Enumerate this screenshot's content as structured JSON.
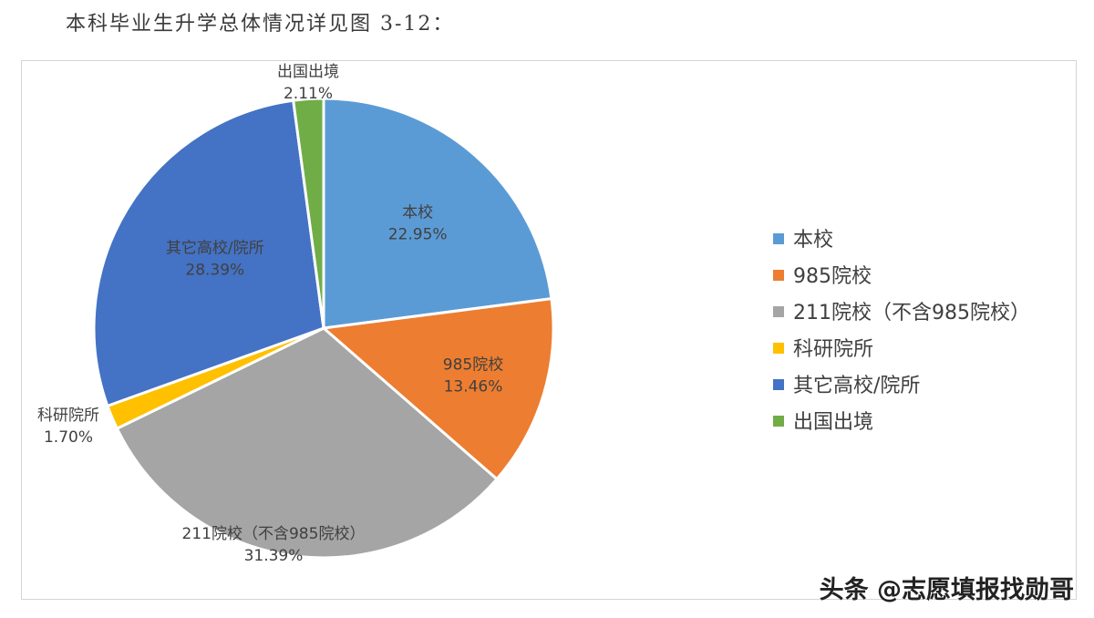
{
  "heading": "本科毕业生升学总体情况详见图 3-12：",
  "chart_data": {
    "type": "pie",
    "title": "",
    "categories": [
      "本校",
      "985院校",
      "211院校（不含985院校）",
      "科研院所",
      "其它高校/院所",
      "出国出境"
    ],
    "values": [
      22.95,
      13.46,
      31.39,
      1.7,
      28.39,
      2.11
    ],
    "data_labels": [
      "22.95%",
      "13.46%",
      "31.39%",
      "1.70%",
      "28.39%",
      "2.11%"
    ],
    "slice_label_names": [
      "本校",
      "985院校",
      "211院校（不含985院校）",
      "科研院所",
      "其它高校/院所",
      "出国出境"
    ],
    "colors": [
      "#5B9BD5",
      "#ED7D31",
      "#A5A5A5",
      "#FFC000",
      "#4472C4",
      "#70AD47"
    ],
    "legend_position": "right",
    "start_angle_deg": 0,
    "direction": "clockwise"
  },
  "watermark": "头条 @志愿填报找勋哥"
}
